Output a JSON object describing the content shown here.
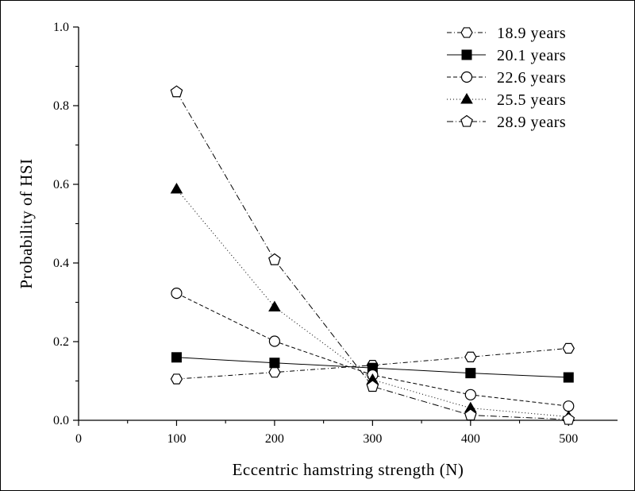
{
  "chart_data": {
    "type": "line",
    "title": "",
    "xlabel": "Eccentric hamstring strength (N)",
    "ylabel": "Probability of HSI",
    "xlim": [
      0,
      550
    ],
    "ylim": [
      0,
      1.0
    ],
    "x_ticks": [
      0,
      100,
      200,
      300,
      400,
      500
    ],
    "y_ticks": [
      0.0,
      0.2,
      0.4,
      0.6,
      0.8,
      1.0
    ],
    "x_tick_labels": [
      "0",
      "100",
      "200",
      "300",
      "400",
      "500"
    ],
    "y_tick_labels": [
      "0.0",
      "0.2",
      "0.4",
      "0.6",
      "0.8",
      "1.0"
    ],
    "legend_position": "top-right",
    "x": [
      100,
      200,
      300,
      400,
      500
    ],
    "series": [
      {
        "name": "18.9 years",
        "marker": "hexagon-open",
        "dash": "6,3,1,3",
        "values": [
          0.105,
          0.122,
          0.14,
          0.161,
          0.183
        ]
      },
      {
        "name": "20.1 years",
        "marker": "square-filled",
        "dash": "",
        "values": [
          0.16,
          0.146,
          0.133,
          0.12,
          0.109
        ]
      },
      {
        "name": "22.6 years",
        "marker": "circle-open",
        "dash": "5,3",
        "values": [
          0.323,
          0.201,
          0.115,
          0.065,
          0.036
        ]
      },
      {
        "name": "25.5 years",
        "marker": "triangle-filled",
        "dash": "1,3",
        "values": [
          0.588,
          0.288,
          0.103,
          0.031,
          0.009
        ]
      },
      {
        "name": "28.9 years",
        "marker": "pentagon-open",
        "dash": "8,3,1,3",
        "values": [
          0.835,
          0.408,
          0.086,
          0.013,
          0.002
        ]
      }
    ]
  }
}
